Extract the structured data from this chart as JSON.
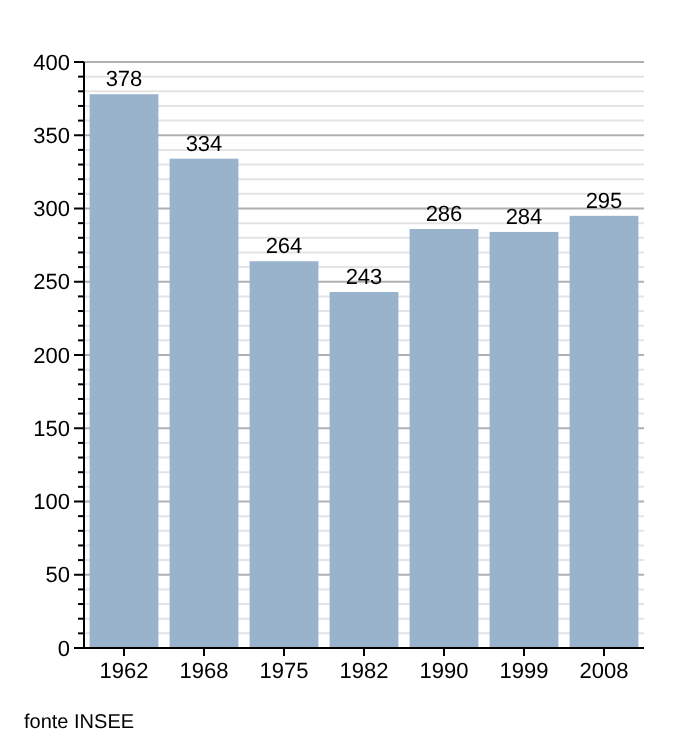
{
  "chart_data": {
    "type": "bar",
    "categories": [
      "1962",
      "1968",
      "1975",
      "1982",
      "1990",
      "1999",
      "2008"
    ],
    "values": [
      378,
      334,
      264,
      243,
      286,
      284,
      295
    ],
    "color": "#9ab3cd",
    "data_labels": true,
    "grid": "y",
    "ylim": [
      0,
      400
    ],
    "yticks": [
      0,
      {
        "value": 10,
        "label": null
      },
      {
        "value": 20,
        "label": null
      },
      {
        "value": 30,
        "label": null
      },
      {
        "value": 40,
        "label": null
      },
      50,
      {
        "value": 60,
        "label": null
      },
      {
        "value": 70,
        "label": null
      },
      {
        "value": 80,
        "label": null
      },
      {
        "value": 90,
        "label": null
      },
      100,
      {
        "value": 110,
        "label": null
      },
      {
        "value": 120,
        "label": null
      },
      {
        "value": 130,
        "label": null
      },
      {
        "value": 140,
        "label": null
      },
      150,
      {
        "value": 160,
        "label": null
      },
      {
        "value": 170,
        "label": null
      },
      {
        "value": 180,
        "label": null
      },
      {
        "value": 190,
        "label": null
      },
      200,
      {
        "value": 210,
        "label": null
      },
      {
        "value": 220,
        "label": null
      },
      {
        "value": 230,
        "label": null
      },
      {
        "value": 240,
        "label": null
      },
      250,
      {
        "value": 260,
        "label": null
      },
      {
        "value": 270,
        "label": null
      },
      {
        "value": 280,
        "label": null
      },
      {
        "value": 290,
        "label": null
      },
      300,
      {
        "value": 310,
        "label": null
      },
      {
        "value": 320,
        "label": null
      },
      {
        "value": 330,
        "label": null
      },
      {
        "value": 340,
        "label": null
      },
      350,
      {
        "value": 360,
        "label": null
      },
      {
        "value": 370,
        "label": null
      },
      {
        "value": 380,
        "label": null
      },
      {
        "value": 390,
        "label": null
      },
      400
    ],
    "annotations": [
      "fonte INSEE"
    ]
  }
}
